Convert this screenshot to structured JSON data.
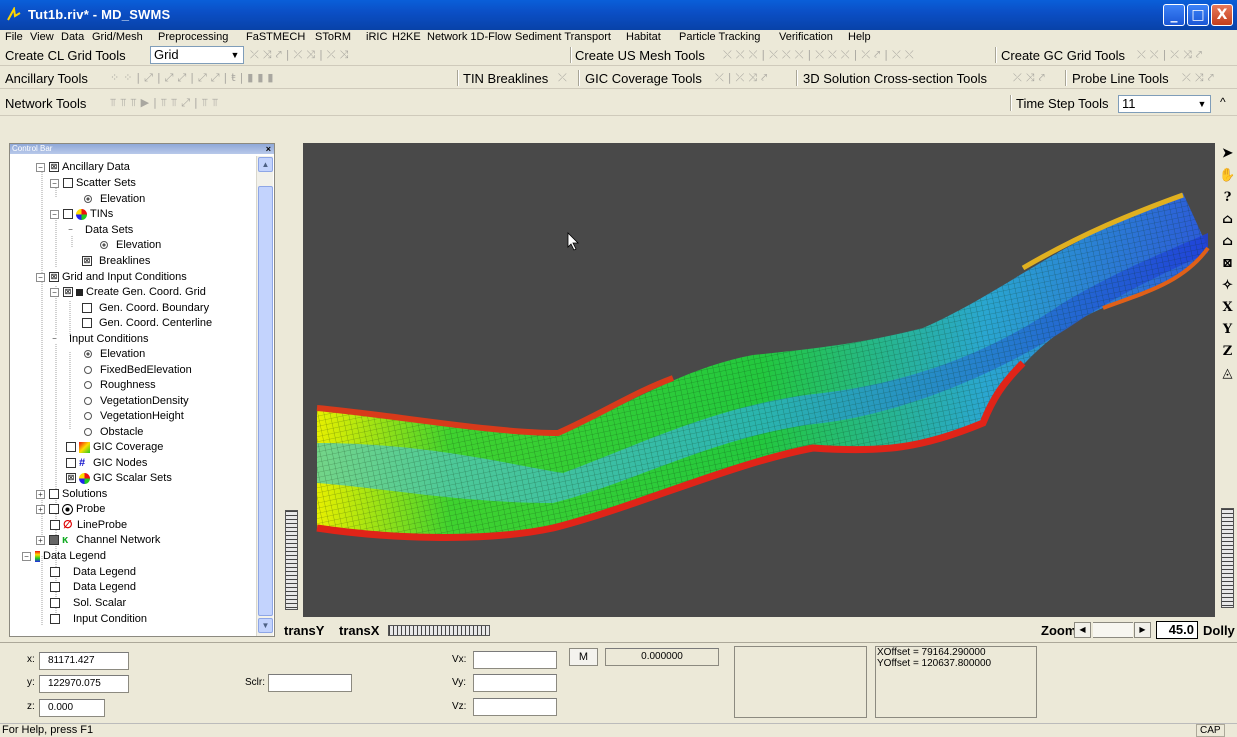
{
  "window": {
    "title": "Tut1b.riv* - MD_SWMS",
    "min": "_",
    "max": "□",
    "close": "X"
  },
  "menu": [
    "File",
    "View",
    "Data",
    "Grid/Mesh",
    "Preprocessing",
    "FaSTMECH",
    "SToRM",
    "iRIC",
    "H2KE",
    "Network 1D-Flow",
    "Sediment Transport",
    "Habitat",
    "Particle Tracking",
    "Verification",
    "Help"
  ],
  "toolbars": {
    "cl_grid_label": "Create CL Grid Tools",
    "cl_grid_combo": "Grid",
    "us_mesh_label": "Create US Mesh Tools",
    "gc_grid_label": "Create GC Grid Tools",
    "ancillary_label": "Ancillary Tools",
    "tin_breaklines_label": "TIN Breaklines",
    "gic_coverage_label": "GIC Coverage Tools",
    "solution_xsec_label": "3D Solution Cross-section Tools",
    "probe_line_label": "Probe Line Tools",
    "network_label": "Network Tools",
    "time_step_label": "Time Step Tools",
    "time_step_value": "11"
  },
  "control_bar": {
    "title": "Control Bar",
    "close": "×",
    "items": [
      {
        "label": "Ancillary Data"
      },
      {
        "label": "Scatter Sets"
      },
      {
        "label": "Elevation"
      },
      {
        "label": "TINs"
      },
      {
        "label": "Data Sets"
      },
      {
        "label": "Elevation"
      },
      {
        "label": "Breaklines"
      },
      {
        "label": "Grid and Input Conditions"
      },
      {
        "label": "Create Gen. Coord. Grid"
      },
      {
        "label": "Gen. Coord. Boundary"
      },
      {
        "label": "Gen. Coord. Centerline"
      },
      {
        "label": "Input Conditions"
      },
      {
        "label": "Elevation"
      },
      {
        "label": "FixedBedElevation"
      },
      {
        "label": "Roughness"
      },
      {
        "label": "VegetationDensity"
      },
      {
        "label": "VegetationHeight"
      },
      {
        "label": "Obstacle"
      },
      {
        "label": "GIC Coverage"
      },
      {
        "label": "GIC Nodes"
      },
      {
        "label": "GIC Scalar Sets"
      },
      {
        "label": "Solutions"
      },
      {
        "label": "Probe"
      },
      {
        "label": "LineProbe"
      },
      {
        "label": "Channel Network"
      },
      {
        "label": "Data Legend"
      },
      {
        "label": "Data Legend"
      },
      {
        "label": "Data Legend"
      },
      {
        "label": "Sol. Scalar"
      },
      {
        "label": "Input Condition"
      }
    ]
  },
  "viewport": {
    "trans_y": "transY",
    "trans_x": "transX",
    "zoom_label": "Zoom",
    "zoom_value": "45.0",
    "dolly_label": "Dolly"
  },
  "coords": {
    "x_label": "x:",
    "x_value": "81171.427",
    "y_label": "y:",
    "y_value": "122970.075",
    "z_label": "z:",
    "z_value": "0.000",
    "sclr_label": "Sclr:",
    "vx_label": "Vx:",
    "vy_label": "Vy:",
    "vz_label": "Vz:",
    "m_button": "M",
    "m_value": "0.000000",
    "xoffset": "XOffset = 79164.290000",
    "yoffset": "YOffset = 120637.800000"
  },
  "status": {
    "help": "For Help, press F1",
    "cap": "CAP"
  },
  "colors": {
    "titlebar": "#0b4fc6",
    "viewport_bg": "#494949",
    "grid_green": "#2ed12a",
    "grid_blue": "#2f5fe0",
    "grid_red": "#e02418"
  }
}
